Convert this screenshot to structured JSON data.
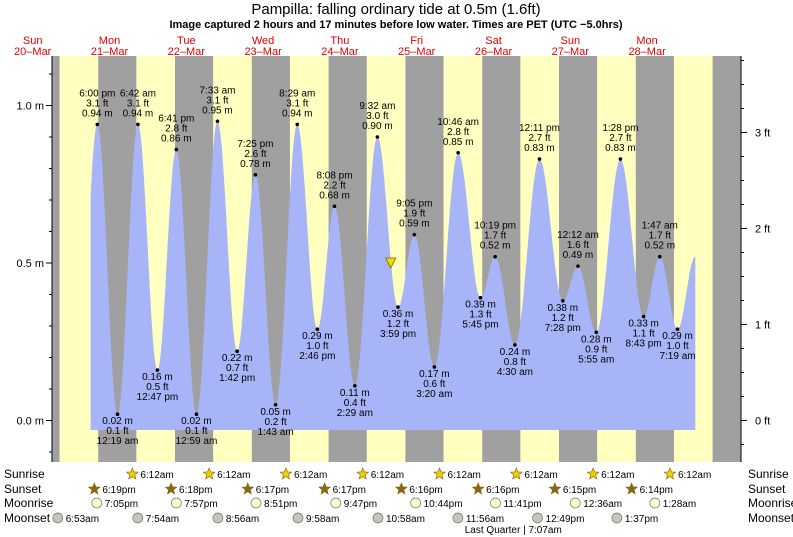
{
  "title": "Pampilla: falling  ordinary tide at 0.5m (1.6ft)",
  "subtitle": "Image captured 2 hours and 17 minutes before low water. Times are PET (UTC −5.0hrs)",
  "chart_data": {
    "type": "area",
    "ylim_m": [
      -0.12,
      1.15
    ],
    "y_ticks_m": [
      "0.0 m",
      "0.5 m",
      "1.0 m"
    ],
    "y_ticks_ft": [
      "0 ft",
      "1 ft",
      "2 ft",
      "3 ft"
    ],
    "day_headers": [
      {
        "weekday": "Sun",
        "date": "20–Mar"
      },
      {
        "weekday": "Mon",
        "date": "21–Mar"
      },
      {
        "weekday": "Tue",
        "date": "22–Mar"
      },
      {
        "weekday": "Wed",
        "date": "23–Mar"
      },
      {
        "weekday": "Thu",
        "date": "24–Mar"
      },
      {
        "weekday": "Fri",
        "date": "25–Mar"
      },
      {
        "weekday": "Sat",
        "date": "26–Mar"
      },
      {
        "weekday": "Sun",
        "date": "27–Mar"
      },
      {
        "weekday": "Mon",
        "date": "28–Mar"
      }
    ],
    "tides": [
      {
        "type": "high",
        "time": "6:00 pm",
        "ft": "3.1 ft",
        "m": "0.94 m",
        "day": 0,
        "hour": 18.0,
        "value": 0.94
      },
      {
        "type": "low",
        "time": "12:19 am",
        "ft": "0.1 ft",
        "m": "0.02 m",
        "day": 1,
        "hour": 0.32,
        "value": 0.02
      },
      {
        "type": "high",
        "time": "6:42 am",
        "ft": "3.1 ft",
        "m": "0.94 m",
        "day": 1,
        "hour": 6.7,
        "value": 0.94
      },
      {
        "type": "low",
        "time": "12:47 pm",
        "ft": "0.5 ft",
        "m": "0.16 m",
        "day": 1,
        "hour": 12.78,
        "value": 0.16
      },
      {
        "type": "high",
        "time": "6:41 pm",
        "ft": "2.8 ft",
        "m": "0.86 m",
        "day": 1,
        "hour": 18.68,
        "value": 0.86
      },
      {
        "type": "low",
        "time": "12:59 am",
        "ft": "0.1 ft",
        "m": "0.02 m",
        "day": 2,
        "hour": 0.98,
        "value": 0.02
      },
      {
        "type": "high",
        "time": "7:33 am",
        "ft": "3.1 ft",
        "m": "0.95 m",
        "day": 2,
        "hour": 7.55,
        "value": 0.95
      },
      {
        "type": "low",
        "time": "1:42 pm",
        "ft": "0.7 ft",
        "m": "0.22 m",
        "day": 2,
        "hour": 13.7,
        "value": 0.22
      },
      {
        "type": "high",
        "time": "7:25 pm",
        "ft": "2.6 ft",
        "m": "0.78 m",
        "day": 2,
        "hour": 19.42,
        "value": 0.78
      },
      {
        "type": "low",
        "time": "1:43 am",
        "ft": "0.2 ft",
        "m": "0.05 m",
        "day": 3,
        "hour": 1.72,
        "value": 0.05
      },
      {
        "type": "high",
        "time": "8:29 am",
        "ft": "3.1 ft",
        "m": "0.94 m",
        "day": 3,
        "hour": 8.48,
        "value": 0.94
      },
      {
        "type": "low",
        "time": "2:46 pm",
        "ft": "1.0 ft",
        "m": "0.29 m",
        "day": 3,
        "hour": 14.77,
        "value": 0.29
      },
      {
        "type": "high",
        "time": "8:08 pm",
        "ft": "2.2 ft",
        "m": "0.68 m",
        "day": 3,
        "hour": 20.13,
        "value": 0.68
      },
      {
        "type": "low",
        "time": "2:29 am",
        "ft": "0.4 ft",
        "m": "0.11 m",
        "day": 4,
        "hour": 2.48,
        "value": 0.11
      },
      {
        "type": "high",
        "time": "9:32 am",
        "ft": "3.0 ft",
        "m": "0.90 m",
        "day": 4,
        "hour": 9.53,
        "value": 0.9
      },
      {
        "type": "low",
        "time": "3:59 pm",
        "ft": "1.2 ft",
        "m": "0.36 m",
        "day": 4,
        "hour": 15.98,
        "value": 0.36
      },
      {
        "type": "high",
        "time": "9:05 pm",
        "ft": "1.9 ft",
        "m": "0.59 m",
        "day": 4,
        "hour": 21.08,
        "value": 0.59
      },
      {
        "type": "low",
        "time": "3:20 am",
        "ft": "0.6 ft",
        "m": "0.17 m",
        "day": 5,
        "hour": 3.33,
        "value": 0.17
      },
      {
        "type": "high",
        "time": "10:46 am",
        "ft": "2.8 ft",
        "m": "0.85 m",
        "day": 5,
        "hour": 10.77,
        "value": 0.85
      },
      {
        "type": "low",
        "time": "5:45 pm",
        "ft": "1.3 ft",
        "m": "0.39 m",
        "day": 5,
        "hour": 17.75,
        "value": 0.39
      },
      {
        "type": "high",
        "time": "10:19 pm",
        "ft": "1.7 ft",
        "m": "0.52 m",
        "day": 5,
        "hour": 22.32,
        "value": 0.52
      },
      {
        "type": "low",
        "time": "4:30 am",
        "ft": "0.8 ft",
        "m": "0.24 m",
        "day": 6,
        "hour": 4.5,
        "value": 0.24
      },
      {
        "type": "high",
        "time": "12:11 pm",
        "ft": "2.7 ft",
        "m": "0.83 m",
        "day": 6,
        "hour": 12.18,
        "value": 0.83
      },
      {
        "type": "low",
        "time": "7:28 pm",
        "ft": "1.2 ft",
        "m": "0.38 m",
        "day": 6,
        "hour": 19.47,
        "value": 0.38
      },
      {
        "type": "high",
        "time": "12:12 am",
        "ft": "1.6 ft",
        "m": "0.49 m",
        "day": 7,
        "hour": 0.2,
        "value": 0.49
      },
      {
        "type": "low",
        "time": "5:55 am",
        "ft": "0.9 ft",
        "m": "0.28 m",
        "day": 7,
        "hour": 5.92,
        "value": 0.28
      },
      {
        "type": "high",
        "time": "1:28 pm",
        "ft": "2.7 ft",
        "m": "0.83 m",
        "day": 7,
        "hour": 13.47,
        "value": 0.83
      },
      {
        "type": "low",
        "time": "8:43 pm",
        "ft": "1.1 ft",
        "m": "0.33 m",
        "day": 7,
        "hour": 20.72,
        "value": 0.33
      },
      {
        "type": "high",
        "time": "1:47 am",
        "ft": "1.7 ft",
        "m": "0.52 m",
        "day": 8,
        "hour": 1.78,
        "value": 0.52
      },
      {
        "type": "low",
        "time": "7:19 am",
        "ft": "1.0 ft",
        "m": "0.29 m",
        "day": 8,
        "hour": 7.32,
        "value": 0.29
      }
    ],
    "current": {
      "day": 4,
      "hour": 13.7,
      "value": 0.5
    },
    "rows": [
      {
        "label": "Sunrise",
        "icon": "sun-icon",
        "color": "#f0d000",
        "events": [
          {
            "day": 1,
            "hour": 6.2,
            "time": "6:12am"
          },
          {
            "day": 2,
            "hour": 6.2,
            "time": "6:12am"
          },
          {
            "day": 3,
            "hour": 6.2,
            "time": "6:12am"
          },
          {
            "day": 4,
            "hour": 6.2,
            "time": "6:12am"
          },
          {
            "day": 5,
            "hour": 6.2,
            "time": "6:12am"
          },
          {
            "day": 6,
            "hour": 6.2,
            "time": "6:12am"
          },
          {
            "day": 7,
            "hour": 6.2,
            "time": "6:12am"
          },
          {
            "day": 8,
            "hour": 6.2,
            "time": "6:12am"
          }
        ]
      },
      {
        "label": "Sunset",
        "icon": "sunset-icon",
        "color": "#8b6914",
        "events": [
          {
            "day": 0,
            "hour": 18.32,
            "time": "6:19pm"
          },
          {
            "day": 1,
            "hour": 18.3,
            "time": "6:18pm"
          },
          {
            "day": 2,
            "hour": 18.28,
            "time": "6:17pm"
          },
          {
            "day": 3,
            "hour": 18.28,
            "time": "6:17pm"
          },
          {
            "day": 4,
            "hour": 18.27,
            "time": "6:16pm"
          },
          {
            "day": 5,
            "hour": 18.27,
            "time": "6:16pm"
          },
          {
            "day": 6,
            "hour": 18.25,
            "time": "6:15pm"
          },
          {
            "day": 7,
            "hour": 18.23,
            "time": "6:14pm"
          }
        ]
      },
      {
        "label": "Moonrise",
        "icon": "moonrise-icon",
        "color": "#fffbd0",
        "events": [
          {
            "day": 0,
            "hour": 19.08,
            "time": "7:05pm"
          },
          {
            "day": 1,
            "hour": 19.95,
            "time": "7:57pm"
          },
          {
            "day": 2,
            "hour": 20.85,
            "time": "8:51pm"
          },
          {
            "day": 3,
            "hour": 21.78,
            "time": "9:47pm"
          },
          {
            "day": 4,
            "hour": 22.73,
            "time": "10:44pm"
          },
          {
            "day": 5,
            "hour": 23.68,
            "time": "11:41pm"
          },
          {
            "day": 7,
            "hour": 0.6,
            "time": "12:36am"
          },
          {
            "day": 8,
            "hour": 1.47,
            "time": "1:28am"
          }
        ]
      },
      {
        "label": "Moonset",
        "icon": "moonset-icon",
        "color": "#c8c4b8",
        "events": [
          {
            "day": 0,
            "hour": 6.88,
            "time": "6:53am"
          },
          {
            "day": 1,
            "hour": 7.9,
            "time": "7:54am"
          },
          {
            "day": 2,
            "hour": 8.93,
            "time": "8:56am"
          },
          {
            "day": 3,
            "hour": 9.97,
            "time": "9:58am"
          },
          {
            "day": 4,
            "hour": 10.97,
            "time": "10:58am"
          },
          {
            "day": 5,
            "hour": 11.93,
            "time": "11:56am"
          },
          {
            "day": 6,
            "hour": 12.82,
            "time": "12:49pm"
          },
          {
            "day": 7,
            "hour": 13.62,
            "time": "1:37pm"
          }
        ]
      }
    ],
    "moon_phase": {
      "text": "Last Quarter | 7:07am",
      "day": 6,
      "hour": 7.12
    },
    "colors": {
      "day": "#ffffc0",
      "night": "#a0a0a0",
      "tide": "#a8b4f8",
      "day_header": "#e00000"
    }
  }
}
